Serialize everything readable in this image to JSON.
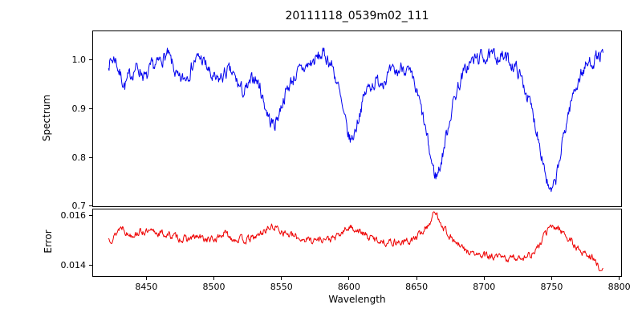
{
  "chart_data": {
    "type": "line",
    "title": "20111118_0539m02_111",
    "xlabel": "Wavelength",
    "xlim": [
      8410,
      8802
    ],
    "x_ticks": [
      8450,
      8500,
      8550,
      8600,
      8650,
      8700,
      8750,
      8800
    ],
    "x_tick_labels": [
      "8450",
      "8500",
      "8550",
      "8600",
      "8650",
      "8700",
      "8750",
      "8800"
    ],
    "grid": false,
    "legend": "none",
    "panels": [
      {
        "name": "spectrum",
        "ylabel": "Spectrum",
        "color": "#0000ee",
        "ylim": [
          0.698,
          1.061
        ],
        "y_ticks": [
          0.7,
          0.8,
          0.9,
          1.0
        ],
        "y_tick_labels": [
          "0.7",
          "0.8",
          "0.9",
          "1.0"
        ],
        "noise_amplitude": 0.012,
        "series": [
          {
            "name": "spectrum-flux",
            "points": [
              [
                8422,
                0.995
              ],
              [
                8427,
                1.005
              ],
              [
                8430,
                0.975
              ],
              [
                8434,
                0.948
              ],
              [
                8438,
                0.968
              ],
              [
                8442,
                0.985
              ],
              [
                8446,
                0.978
              ],
              [
                8450,
                0.96
              ],
              [
                8454,
                0.985
              ],
              [
                8458,
                0.99
              ],
              [
                8462,
                1.005
              ],
              [
                8466,
                1.01
              ],
              [
                8470,
                0.985
              ],
              [
                8474,
                0.955
              ],
              [
                8478,
                0.962
              ],
              [
                8482,
                0.978
              ],
              [
                8486,
                1.0
              ],
              [
                8490,
                1.005
              ],
              [
                8494,
                0.99
              ],
              [
                8498,
                0.965
              ],
              [
                8502,
                0.955
              ],
              [
                8506,
                0.965
              ],
              [
                8510,
                0.978
              ],
              [
                8514,
                0.97
              ],
              [
                8518,
                0.95
              ],
              [
                8522,
                0.932
              ],
              [
                8526,
                0.945
              ],
              [
                8530,
                0.968
              ],
              [
                8534,
                0.945
              ],
              [
                8538,
                0.905
              ],
              [
                8542,
                0.872
              ],
              [
                8545,
                0.868
              ],
              [
                8548,
                0.89
              ],
              [
                8552,
                0.925
              ],
              [
                8556,
                0.95
              ],
              [
                8560,
                0.968
              ],
              [
                8565,
                0.98
              ],
              [
                8570,
                0.99
              ],
              [
                8575,
                1.0
              ],
              [
                8580,
                1.012
              ],
              [
                8584,
                1.005
              ],
              [
                8588,
                0.985
              ],
              [
                8592,
                0.945
              ],
              [
                8596,
                0.885
              ],
              [
                8600,
                0.84
              ],
              [
                8602,
                0.835
              ],
              [
                8605,
                0.86
              ],
              [
                8609,
                0.905
              ],
              [
                8613,
                0.938
              ],
              [
                8617,
                0.952
              ],
              [
                8621,
                0.955
              ],
              [
                8626,
                0.962
              ],
              [
                8631,
                0.972
              ],
              [
                8636,
                0.975
              ],
              [
                8640,
                0.99
              ],
              [
                8644,
                0.975
              ],
              [
                8648,
                0.95
              ],
              [
                8652,
                0.915
              ],
              [
                8656,
                0.865
              ],
              [
                8660,
                0.805
              ],
              [
                8663,
                0.768
              ],
              [
                8665,
                0.762
              ],
              [
                8668,
                0.788
              ],
              [
                8672,
                0.845
              ],
              [
                8676,
                0.9
              ],
              [
                8680,
                0.94
              ],
              [
                8684,
                0.968
              ],
              [
                8688,
                0.988
              ],
              [
                8692,
                1.0
              ],
              [
                8696,
                1.005
              ],
              [
                8700,
                1.008
              ],
              [
                8705,
                1.005
              ],
              [
                8710,
                1.01
              ],
              [
                8715,
                1.005
              ],
              [
                8720,
                0.995
              ],
              [
                8725,
                0.978
              ],
              [
                8730,
                0.945
              ],
              [
                8735,
                0.9
              ],
              [
                8740,
                0.845
              ],
              [
                8744,
                0.79
              ],
              [
                8747,
                0.745
              ],
              [
                8749,
                0.722
              ],
              [
                8752,
                0.74
              ],
              [
                8755,
                0.78
              ],
              [
                8759,
                0.845
              ],
              [
                8763,
                0.9
              ],
              [
                8767,
                0.94
              ],
              [
                8771,
                0.968
              ],
              [
                8775,
                0.985
              ],
              [
                8779,
                0.998
              ],
              [
                8783,
                1.005
              ],
              [
                8788,
                1.01
              ]
            ]
          }
        ]
      },
      {
        "name": "error",
        "ylabel": "Error",
        "color": "#ee0000",
        "ylim": [
          0.01352,
          0.01626
        ],
        "y_ticks": [
          0.014,
          0.016
        ],
        "y_tick_labels": [
          "0.014",
          "0.016"
        ],
        "noise_amplitude": 0.00012,
        "series": [
          {
            "name": "error-level",
            "points": [
              [
                8422,
                0.01505
              ],
              [
                8426,
                0.01512
              ],
              [
                8430,
                0.01548
              ],
              [
                8433,
                0.01555
              ],
              [
                8436,
                0.01522
              ],
              [
                8440,
                0.01525
              ],
              [
                8444,
                0.01532
              ],
              [
                8448,
                0.01535
              ],
              [
                8452,
                0.01528
              ],
              [
                8456,
                0.01532
              ],
              [
                8460,
                0.01528
              ],
              [
                8464,
                0.01522
              ],
              [
                8468,
                0.01518
              ],
              [
                8472,
                0.01512
              ],
              [
                8476,
                0.01505
              ],
              [
                8480,
                0.01502
              ],
              [
                8484,
                0.01508
              ],
              [
                8488,
                0.01512
              ],
              [
                8492,
                0.01505
              ],
              [
                8496,
                0.01502
              ],
              [
                8500,
                0.015
              ],
              [
                8504,
                0.01515
              ],
              [
                8508,
                0.01528
              ],
              [
                8512,
                0.01512
              ],
              [
                8516,
                0.01505
              ],
              [
                8520,
                0.01502
              ],
              [
                8524,
                0.015
              ],
              [
                8528,
                0.01505
              ],
              [
                8532,
                0.01515
              ],
              [
                8536,
                0.01532
              ],
              [
                8540,
                0.01548
              ],
              [
                8545,
                0.01552
              ],
              [
                8550,
                0.01538
              ],
              [
                8555,
                0.01522
              ],
              [
                8560,
                0.01512
              ],
              [
                8565,
                0.01505
              ],
              [
                8570,
                0.01502
              ],
              [
                8575,
                0.015
              ],
              [
                8580,
                0.01505
              ],
              [
                8585,
                0.01502
              ],
              [
                8590,
                0.01508
              ],
              [
                8595,
                0.01528
              ],
              [
                8600,
                0.01552
              ],
              [
                8605,
                0.01545
              ],
              [
                8610,
                0.01525
              ],
              [
                8615,
                0.0151
              ],
              [
                8620,
                0.01502
              ],
              [
                8625,
                0.01495
              ],
              [
                8630,
                0.0149
              ],
              [
                8635,
                0.01494
              ],
              [
                8640,
                0.0149
              ],
              [
                8645,
                0.01496
              ],
              [
                8650,
                0.0151
              ],
              [
                8655,
                0.01538
              ],
              [
                8660,
                0.01572
              ],
              [
                8663,
                0.01608
              ],
              [
                8666,
                0.01595
              ],
              [
                8670,
                0.01552
              ],
              [
                8675,
                0.01512
              ],
              [
                8680,
                0.01482
              ],
              [
                8685,
                0.01462
              ],
              [
                8690,
                0.01448
              ],
              [
                8695,
                0.0144
              ],
              [
                8700,
                0.01436
              ],
              [
                8705,
                0.01432
              ],
              [
                8710,
                0.0143
              ],
              [
                8715,
                0.01426
              ],
              [
                8720,
                0.01426
              ],
              [
                8725,
                0.0143
              ],
              [
                8730,
                0.01434
              ],
              [
                8735,
                0.01442
              ],
              [
                8740,
                0.01468
              ],
              [
                8744,
                0.01512
              ],
              [
                8748,
                0.01548
              ],
              [
                8752,
                0.01552
              ],
              [
                8756,
                0.01545
              ],
              [
                8760,
                0.01522
              ],
              [
                8764,
                0.01495
              ],
              [
                8768,
                0.01472
              ],
              [
                8772,
                0.0145
              ],
              [
                8776,
                0.01442
              ],
              [
                8780,
                0.01432
              ],
              [
                8784,
                0.01395
              ],
              [
                8788,
                0.01385
              ]
            ]
          }
        ]
      }
    ]
  }
}
